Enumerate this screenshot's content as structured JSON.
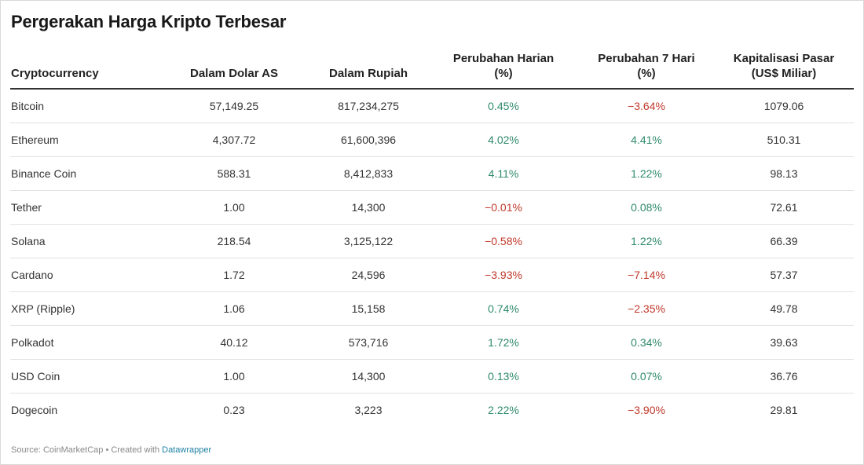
{
  "title": "Pergerakan Harga Kripto Terbesar",
  "colors": {
    "positive": "#2f8a6b",
    "negative": "#c0392b",
    "link": "#1d81a2"
  },
  "chart_data": {
    "type": "table",
    "title": "Pergerakan Harga Kripto Terbesar",
    "columns": [
      "Cryptocurrency",
      "Dalam Dolar AS",
      "Dalam Rupiah",
      "Perubahan Harian (%)",
      "Perubahan 7 Hari (%)",
      "Kapitalisasi Pasar (US$ Miliar)"
    ],
    "rows": [
      [
        "Bitcoin",
        "57,149.25",
        "817,234,275",
        "0.45%",
        "−3.64%",
        "1079.06"
      ],
      [
        "Ethereum",
        "4,307.72",
        "61,600,396",
        "4.02%",
        "4.41%",
        "510.31"
      ],
      [
        "Binance Coin",
        "588.31",
        "8,412,833",
        "4.11%",
        "1.22%",
        "98.13"
      ],
      [
        "Tether",
        "1.00",
        "14,300",
        "−0.01%",
        "0.08%",
        "72.61"
      ],
      [
        "Solana",
        "218.54",
        "3,125,122",
        "−0.58%",
        "1.22%",
        "66.39"
      ],
      [
        "Cardano",
        "1.72",
        "24,596",
        "−3.93%",
        "−7.14%",
        "57.37"
      ],
      [
        "XRP (Ripple)",
        "1.06",
        "15,158",
        "0.74%",
        "−2.35%",
        "49.78"
      ],
      [
        "Polkadot",
        "40.12",
        "573,716",
        "1.72%",
        "0.34%",
        "39.63"
      ],
      [
        "USD Coin",
        "1.00",
        "14,300",
        "0.13%",
        "0.07%",
        "36.76"
      ],
      [
        "Dogecoin",
        "0.23",
        "3,223",
        "2.22%",
        "−3.90%",
        "29.81"
      ]
    ]
  },
  "footer": {
    "source": "Source: CoinMarketCap • Created with ",
    "link_text": "Datawrapper"
  }
}
